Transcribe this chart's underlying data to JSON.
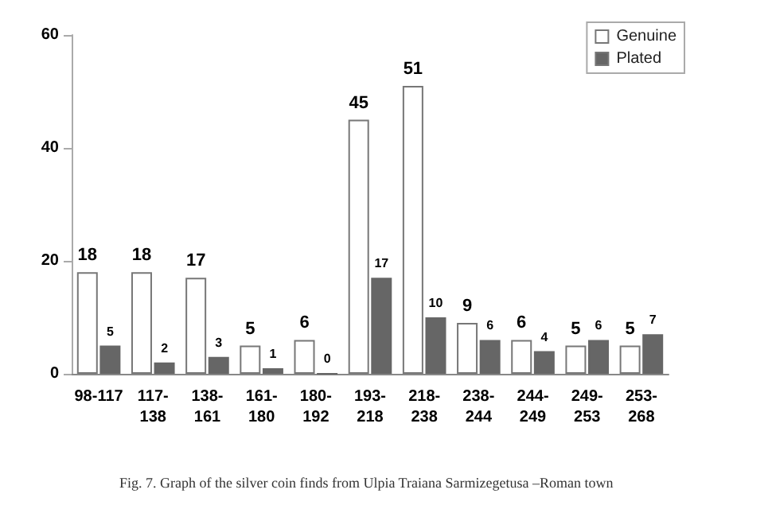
{
  "chart_data": {
    "type": "bar",
    "categories": [
      "98-117",
      "117-138",
      "138-161",
      "161-180",
      "180-192",
      "193-218",
      "218-238",
      "238-244",
      "244-249",
      "249-253",
      "253-268"
    ],
    "series": [
      {
        "name": "Genuine",
        "color": "#ffffff",
        "values": [
          18,
          18,
          17,
          5,
          6,
          45,
          51,
          9,
          6,
          5,
          5
        ]
      },
      {
        "name": "Plated",
        "color": "#666666",
        "values": [
          5,
          2,
          3,
          1,
          0,
          17,
          10,
          6,
          4,
          6,
          7
        ]
      }
    ],
    "ylim": [
      0,
      60
    ],
    "yticks": [
      0,
      20,
      40,
      60
    ],
    "grid": false,
    "legend": "top right",
    "data_labels": true,
    "annotations": [
      "Fig. 7. Graph of the silver coin finds from Ulpia Traiana Sarmizegetusa –Roman town"
    ]
  }
}
